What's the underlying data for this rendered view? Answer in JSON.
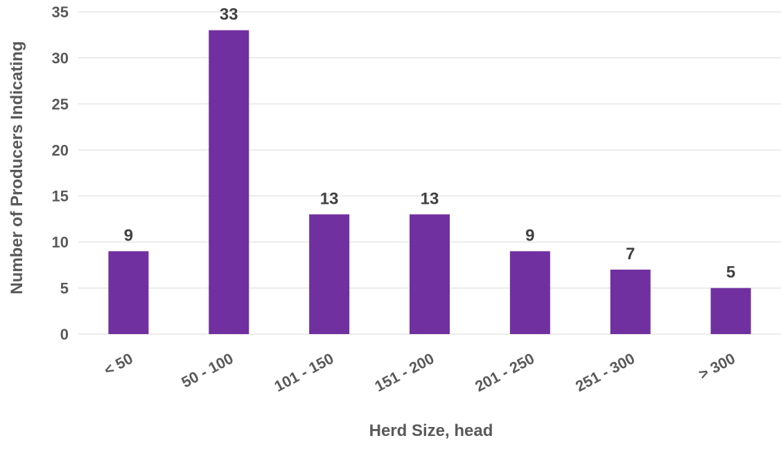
{
  "chart_data": {
    "type": "bar",
    "title": "",
    "xlabel": "Herd Size, head",
    "ylabel": "Number of Producers Indicating",
    "categories": [
      "< 50",
      "50 - 100",
      "101 - 150",
      "151 - 200",
      "201 - 250",
      "251 - 300",
      "> 300"
    ],
    "values": [
      9,
      33,
      13,
      13,
      9,
      7,
      5
    ],
    "data_labels": [
      "9",
      "33",
      "13",
      "13",
      "9",
      "7",
      "5"
    ],
    "ylim": [
      0,
      35
    ],
    "yticks": [
      0,
      5,
      10,
      15,
      20,
      25,
      30,
      35
    ],
    "ytick_labels": [
      "0",
      "5",
      "10",
      "15",
      "20",
      "25",
      "30",
      "35"
    ],
    "grid": true,
    "legend": "none",
    "bar_color": "#7030a0"
  }
}
